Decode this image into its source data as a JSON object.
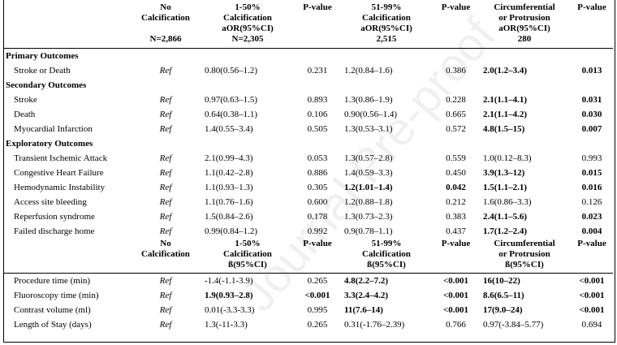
{
  "header_top": {
    "c1": [
      "No",
      "Calcification",
      "",
      "N=2,866"
    ],
    "c2": [
      "1-50%",
      "Calcification",
      "aOR(95%CI)",
      "N=2,305"
    ],
    "c3": [
      "P-value"
    ],
    "c4": [
      "51-99%",
      "Calcification",
      "aOR(95%CI)",
      "2,515"
    ],
    "c5": [
      "P-value"
    ],
    "c6": [
      "Circumferential",
      "or Protrusion",
      "aOR(95%CI)",
      "280"
    ],
    "c7": [
      "P-value"
    ]
  },
  "sections": [
    {
      "title": "Primary Outcomes",
      "rows": [
        {
          "label": "Stroke or Death",
          "c1": "Ref",
          "c2": "0.80(0.56–1.2)",
          "c3": "0.231",
          "c4": "1.2(0.84–1.6)",
          "c5": "0.386",
          "c6": "2.0(1.2–3.4)",
          "c7": "0.013",
          "b2": false,
          "b4": false,
          "b5": false,
          "b6": true,
          "b7": true
        }
      ]
    },
    {
      "title": "Secondary Outcomes",
      "rows": [
        {
          "label": "Stroke",
          "c1": "Ref",
          "c2": "0.97(0.63–1.5)",
          "c3": "0.893",
          "c4": "1.3(0.86–1.9)",
          "c5": "0.228",
          "c6": "2.1(1.1–4.1)",
          "c7": "0.031",
          "b2": false,
          "b4": false,
          "b5": false,
          "b6": true,
          "b7": true
        },
        {
          "label": "Death",
          "c1": "Ref",
          "c2": "0.64(0.38–1.1)",
          "c3": "0.106",
          "c4": "0.90(0.56–1.4)",
          "c5": "0.665",
          "c6": "2.1(1.1–4.2)",
          "c7": "0.030",
          "b2": false,
          "b4": false,
          "b5": false,
          "b6": true,
          "b7": true
        },
        {
          "label": "Myocardial Infarction",
          "c1": "Ref",
          "c2": "1.4(0.55–3.4)",
          "c3": "0.505",
          "c4": "1.3(0.53–3.1)",
          "c5": "0.572",
          "c6": "4.8(1.5–15)",
          "c7": "0.007",
          "b2": false,
          "b4": false,
          "b5": false,
          "b6": true,
          "b7": true
        }
      ]
    },
    {
      "title": "Exploratory Outcomes",
      "rows": [
        {
          "label": "Transient Ischemic Attack",
          "c1": "Ref",
          "c2": "2.1(0.99–4.3)",
          "c3": "0.053",
          "c4": "1.3(0.57–2.8)",
          "c5": "0.559",
          "c6": "1.0(0.12–8.3)",
          "c7": "0.993",
          "b2": false,
          "b4": false,
          "b5": false,
          "b6": false,
          "b7": false
        },
        {
          "label": "Congestive Heart Failure",
          "c1": "Ref",
          "c2": "1.1(0.42–2.8)",
          "c3": "0.886",
          "c4": "1.4(0.59–3.3)",
          "c5": "0.450",
          "c6": "3.9(1.3–12)",
          "c7": "0.015",
          "b2": false,
          "b4": false,
          "b5": false,
          "b6": true,
          "b7": true
        },
        {
          "label": "Hemodynamic Instability",
          "c1": "Ref",
          "c2": "1.1(0.93–1.3)",
          "c3": "0.305",
          "c4": "1.2(1.01–1.4)",
          "c5": "0.042",
          "c6": "1.5(1.1–2.1)",
          "c7": "0.016",
          "b2": false,
          "b4": true,
          "b5": true,
          "b6": true,
          "b7": true
        },
        {
          "label": "Access site bleeding",
          "c1": "Ref",
          "c2": "1.1(0.76–1.6)",
          "c3": "0.600",
          "c4": "1.2(0.88–1.8)",
          "c5": "0.212",
          "c6": "1.6(0.86–3.3)",
          "c7": "0.126",
          "b2": false,
          "b4": false,
          "b5": false,
          "b6": false,
          "b7": false
        },
        {
          "label": "Reperfusion syndrome",
          "c1": "Ref",
          "c2": "1.5(0.84–2.6)",
          "c3": "0.178",
          "c4": "1.3(0.73–2.3)",
          "c5": "0.383",
          "c6": "2.4(1.1–5.6)",
          "c7": "0.023",
          "b2": false,
          "b4": false,
          "b5": false,
          "b6": true,
          "b7": true
        },
        {
          "label": "Failed discharge home",
          "c1": "Ref",
          "c2": "0.99(0.84–1.2)",
          "c3": "0.992",
          "c4": "0.9(0.78–1.1)",
          "c5": "0.437",
          "c6": "1.7(1.2–2.4)",
          "c7": "0.004",
          "b2": false,
          "b4": false,
          "b5": false,
          "b6": true,
          "b7": true
        }
      ]
    }
  ],
  "header_bottom": {
    "c1": [
      "No",
      "Calcification"
    ],
    "c2": [
      "1-50%",
      "Calcification",
      "ß(95%CI)"
    ],
    "c3": [
      "P-value"
    ],
    "c4": [
      "51-99%",
      "Calcification",
      "ß(95%CI)"
    ],
    "c5": [
      "P-value"
    ],
    "c6": [
      "Circumferential",
      "or Protrusion",
      "ß(95%CI)"
    ],
    "c7": [
      "P-value"
    ]
  },
  "bottom_rows": [
    {
      "label": "Procedure time (min)",
      "c1": "Ref",
      "c2": "-1.4(-1.1-3.9)",
      "c3": "0.265",
      "c4": "4.8(2.2–7.2)",
      "c5": "<0.001",
      "c6": "16(10–22)",
      "c7": "<0.001",
      "b2": false,
      "b3": false,
      "b4": true,
      "b5": true,
      "b6": true,
      "b7": true
    },
    {
      "label": "Fluoroscopy time (min)",
      "c1": "Ref",
      "c2": "1.9(0.93–2.8)",
      "c3": "<0.001",
      "c4": "3.3(2.4–4.2)",
      "c5": "<0.001",
      "c6": "8.6(6.5–11)",
      "c7": "<0.001",
      "b2": true,
      "b3": true,
      "b4": true,
      "b5": true,
      "b6": true,
      "b7": true
    },
    {
      "label": "Contrast volume (ml)",
      "c1": "Ref",
      "c2": "0.01(-3.3-3.3)",
      "c3": "0.995",
      "c4": "11(7.6–14)",
      "c5": "<0.001",
      "c6": "17(9.0–24)",
      "c7": "<0.001",
      "b2": false,
      "b3": false,
      "b4": true,
      "b5": true,
      "b6": true,
      "b7": true
    },
    {
      "label": "Length of Stay (days)",
      "c1": "Ref",
      "c2": "1.3(-11-3.3)",
      "c3": "0.265",
      "c4": "0.31(-1.76–2.39)",
      "c5": "0.766",
      "c6": "0.97(-3.84–5.77)",
      "c7": "0.694",
      "b2": false,
      "b3": false,
      "b4": false,
      "b5": false,
      "b6": false,
      "b7": false
    }
  ],
  "watermark": "Journal Pre-proof"
}
